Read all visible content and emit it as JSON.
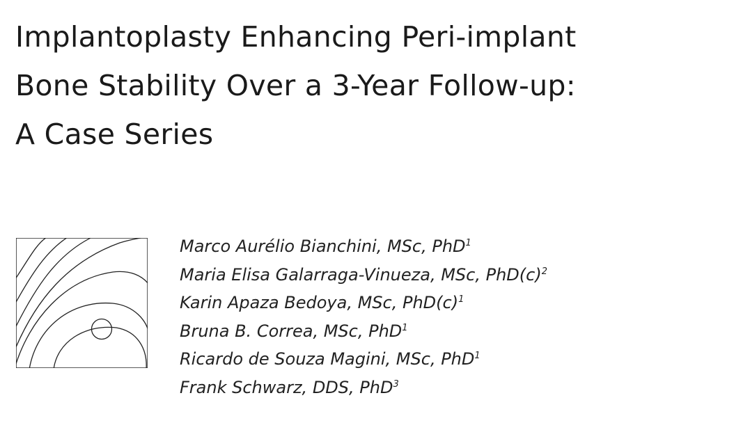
{
  "header": {
    "title_lines": [
      "Implantoplasty Enhancing Peri-implant",
      "Bone Stability Over a 3-Year Follow-up:",
      "A Case Series"
    ]
  },
  "authors": [
    {
      "name": "Marco Aurélio Bianchini, MSc, PhD",
      "affiliation": "1"
    },
    {
      "name": "Maria Elisa Galarraga-Vinueza, MSc, PhD(c)",
      "affiliation": "2"
    },
    {
      "name": "Karin Apaza Bedoya, MSc, PhD(c)",
      "affiliation": "1"
    },
    {
      "name": "Bruna B. Correa, MSc, PhD",
      "affiliation": "1"
    },
    {
      "name": "Ricardo de Souza Magini, MSc, PhD",
      "affiliation": "1"
    },
    {
      "name": "Frank Schwarz, DDS, PhD",
      "affiliation": "3"
    }
  ]
}
